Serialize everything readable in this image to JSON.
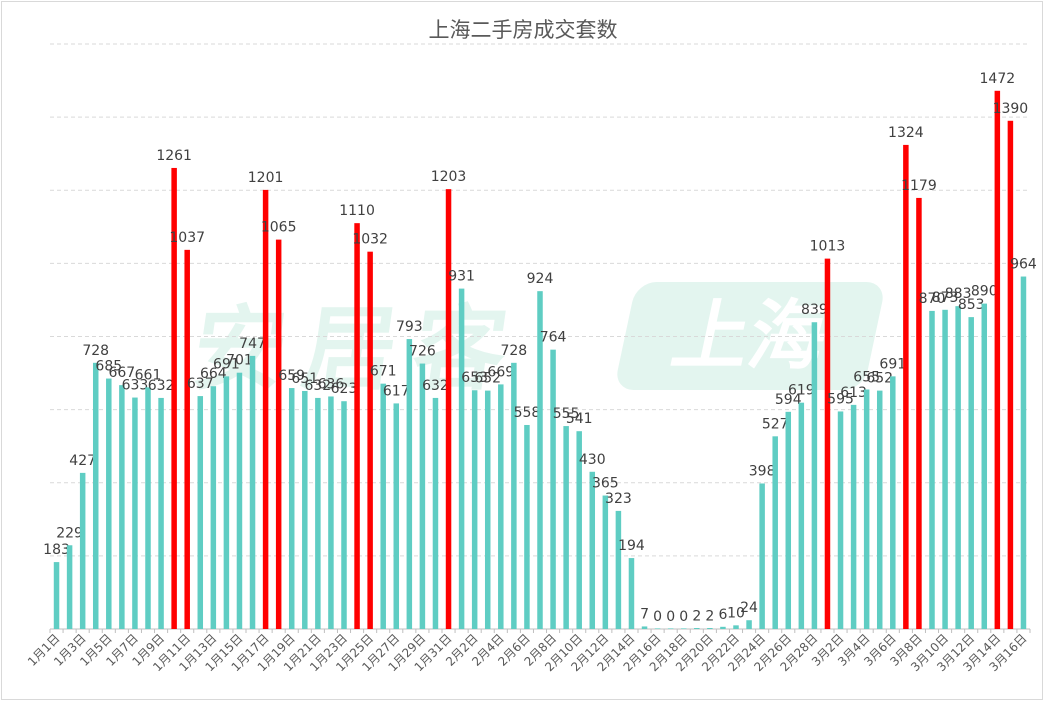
{
  "chart_data": {
    "type": "bar",
    "title": "上海二手房成交套数",
    "watermark": "安居客",
    "watermark_badge": "上海",
    "xlabel": "",
    "ylabel": "",
    "ylim": [
      0,
      1600
    ],
    "grid": true,
    "colors": {
      "normal": "#5fcdc3",
      "highlight": "#ff0000",
      "grid": "#d9d9d9",
      "axis": "#bfbfbf"
    },
    "categories": [
      "1月1日",
      "1月2日",
      "1月3日",
      "1月4日",
      "1月5日",
      "1月6日",
      "1月7日",
      "1月8日",
      "1月9日",
      "1月10日",
      "1月11日",
      "1月12日",
      "1月13日",
      "1月14日",
      "1月15日",
      "1月16日",
      "1月17日",
      "1月18日",
      "1月19日",
      "1月20日",
      "1月21日",
      "1月22日",
      "1月23日",
      "1月24日",
      "1月25日",
      "1月26日",
      "1月27日",
      "1月28日",
      "1月29日",
      "1月30日",
      "1月31日",
      "2月1日",
      "2月2日",
      "2月3日",
      "2月4日",
      "2月5日",
      "2月6日",
      "2月7日",
      "2月8日",
      "2月9日",
      "2月10日",
      "2月11日",
      "2月12日",
      "2月13日",
      "2月14日",
      "2月15日",
      "2月16日",
      "2月17日",
      "2月18日",
      "2月19日",
      "2月20日",
      "2月21日",
      "2月22日",
      "2月23日",
      "2月24日",
      "2月25日",
      "2月26日",
      "2月27日",
      "2月28日",
      "3月1日",
      "3月2日",
      "3月3日",
      "3月4日",
      "3月5日",
      "3月6日",
      "3月7日",
      "3月8日",
      "3月9日",
      "3月10日",
      "3月11日",
      "3月12日",
      "3月13日",
      "3月14日",
      "3月15日",
      "3月16日"
    ],
    "values": [
      183,
      229,
      427,
      728,
      685,
      667,
      633,
      661,
      632,
      1261,
      1037,
      637,
      664,
      691,
      701,
      747,
      1201,
      1065,
      659,
      651,
      632,
      636,
      623,
      1110,
      1032,
      671,
      617,
      793,
      726,
      632,
      1203,
      931,
      653,
      652,
      669,
      728,
      558,
      924,
      764,
      555,
      541,
      430,
      365,
      323,
      194,
      7,
      0,
      0,
      0,
      2,
      2,
      6,
      10,
      24,
      398,
      527,
      594,
      619,
      839,
      1013,
      595,
      613,
      655,
      652,
      691,
      1324,
      1179,
      870,
      873,
      883,
      853,
      890,
      1472,
      1390,
      964
    ],
    "highlighted": [
      false,
      false,
      false,
      false,
      false,
      false,
      false,
      false,
      false,
      true,
      true,
      false,
      false,
      false,
      false,
      false,
      true,
      true,
      false,
      false,
      false,
      false,
      false,
      true,
      true,
      false,
      false,
      false,
      false,
      false,
      true,
      false,
      false,
      false,
      false,
      false,
      false,
      false,
      false,
      false,
      false,
      false,
      false,
      false,
      false,
      false,
      false,
      false,
      false,
      false,
      false,
      false,
      false,
      false,
      false,
      false,
      false,
      false,
      false,
      true,
      false,
      false,
      false,
      false,
      false,
      true,
      true,
      false,
      false,
      false,
      false,
      false,
      true,
      true,
      false
    ],
    "data_labels": [
      "183",
      "229",
      "427",
      "728",
      "685",
      "667",
      "633",
      "661",
      "632",
      "1261",
      "1037",
      "637",
      "664",
      "691",
      "701",
      "747",
      "1201",
      "1065",
      "659",
      "651",
      "632",
      "636",
      "623",
      "1110",
      "1032",
      "671",
      "617",
      "793",
      "726",
      "632",
      "1203",
      "931",
      "653",
      "652",
      "669",
      "728",
      "558",
      "924",
      "764",
      "555",
      "541",
      "430",
      "365",
      "323",
      "194",
      "7",
      "0",
      "0",
      "0",
      "2",
      "2",
      "6",
      "10",
      "24",
      "398",
      "527",
      "594",
      "619",
      "839",
      "1013",
      "595",
      "613",
      "655",
      "652",
      "691",
      "1324",
      "1179",
      "870",
      "873",
      "883",
      "853",
      "890",
      "1472",
      "1390",
      "964"
    ],
    "tick_labels": [
      "1月1日",
      "1月3日",
      "1月5日",
      "1月7日",
      "1月9日",
      "1月11日",
      "1月13日",
      "1月15日",
      "1月17日",
      "1月19日",
      "1月21日",
      "1月23日",
      "1月25日",
      "1月27日",
      "1月29日",
      "1月31日",
      "2月2日",
      "2月4日",
      "2月6日",
      "2月8日",
      "2月10日",
      "2月12日",
      "2月14日",
      "2月16日",
      "2月18日",
      "2月20日",
      "2月22日",
      "2月24日",
      "2月26日",
      "2月28日",
      "3月2日",
      "3月4日",
      "3月6日",
      "3月8日",
      "3月10日",
      "3月12日",
      "3月14日",
      "3月16日"
    ]
  }
}
